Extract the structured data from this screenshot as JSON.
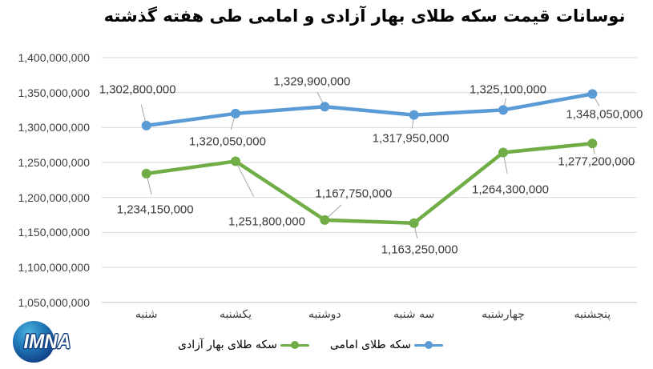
{
  "title": "نوسانات قیمت سکه طلای بهار آزادی و امامی طی هفته گذشته",
  "logo": {
    "text": "IMNA"
  },
  "legend": [
    {
      "label": "سکه طلای بهار آزادی",
      "color": "#70AD47"
    },
    {
      "label": "سکه طلای امامی",
      "color": "#5B9BD5"
    }
  ],
  "chart_data": {
    "type": "line",
    "title": "نوسانات قیمت سکه طلای بهار آزادی و امامی طی هفته گذشته",
    "categories": [
      "شنبه",
      "یکشنبه",
      "دوشنبه",
      "سه شنبه",
      "چهارشنبه",
      "پنجشنبه"
    ],
    "series": [
      {
        "name": "سکه طلای بهار آزادی",
        "color": "#70AD47",
        "values": [
          1234150000,
          1251800000,
          1167750000,
          1163250000,
          1264300000,
          1277200000
        ]
      },
      {
        "name": "سکه طلای امامی",
        "color": "#5B9BD5",
        "values": [
          1302800000,
          1320050000,
          1329900000,
          1317950000,
          1325100000,
          1348050000
        ]
      }
    ],
    "ylim": [
      1050000000,
      1400000000
    ],
    "ytick_step": 50000000,
    "ytick_labels": [
      "1,400,000,000",
      "1,350,000,000",
      "1,300,000,000",
      "1,250,000,000",
      "1,200,000,000",
      "1,150,000,000",
      "1,100,000,000",
      "1,050,000,000"
    ],
    "grid": true,
    "data_labels": true,
    "legend_position": "bottom"
  }
}
